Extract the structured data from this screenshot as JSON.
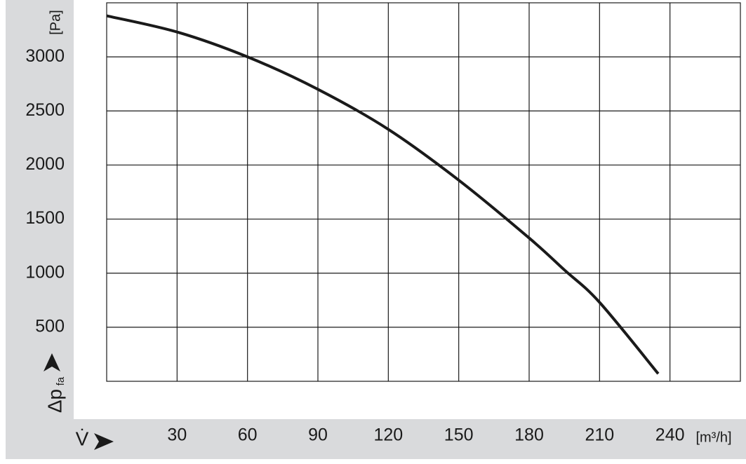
{
  "chart_data": {
    "type": "line",
    "x": [
      0,
      30,
      60,
      90,
      120,
      150,
      180,
      195,
      210,
      235
    ],
    "values": [
      3380,
      3230,
      3000,
      2700,
      2330,
      1860,
      1325,
      1030,
      730,
      70
    ],
    "color": "#1a1a1a",
    "xlim": [
      0,
      270
    ],
    "ylim": [
      0,
      3500
    ],
    "xticks": [
      30,
      60,
      90,
      120,
      150,
      180,
      210,
      240
    ],
    "yticks": [
      500,
      1000,
      1500,
      2000,
      2500,
      3000
    ],
    "grid": true,
    "x_label": "V̇",
    "x_unit": "[m³/h]",
    "y_label": "Δp",
    "y_label_sub": "fa",
    "y_unit": "[Pa]"
  }
}
